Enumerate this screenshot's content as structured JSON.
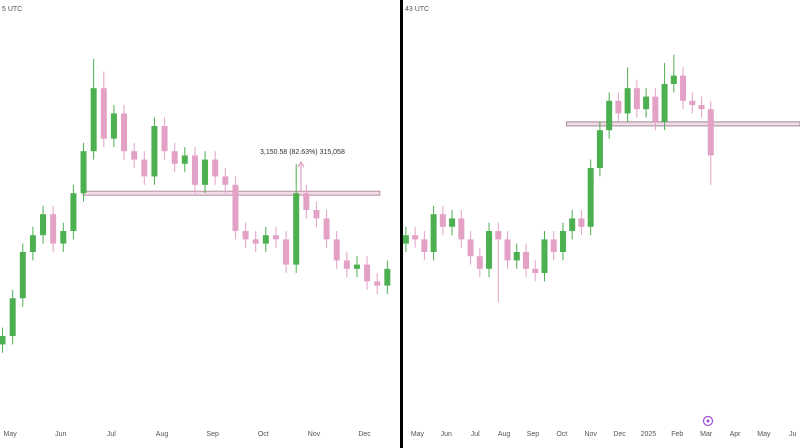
{
  "chart_data": [
    {
      "type": "candlestick",
      "corner_label": "5 UTC",
      "annotation": "3,150.58 (82.63%) 315,058",
      "up_color": "#4caf50",
      "down_color": "#e3a1c6",
      "xlim": [
        4.8,
        12.7
      ],
      "ylim": [
        0,
        100
      ],
      "xticks": [
        {
          "value": 5,
          "label": "May"
        },
        {
          "value": 6,
          "label": "Jun"
        },
        {
          "value": 7,
          "label": "Jul"
        },
        {
          "value": 8,
          "label": "Aug"
        },
        {
          "value": 9,
          "label": "Sep"
        },
        {
          "value": 10,
          "label": "Oct"
        },
        {
          "value": 11,
          "label": "Nov"
        },
        {
          "value": 12,
          "label": "Dec"
        }
      ],
      "x": [
        4.85,
        5.05,
        5.25,
        5.45,
        5.65,
        5.85,
        6.05,
        6.25,
        6.45,
        6.65,
        6.85,
        7.05,
        7.25,
        7.45,
        7.65,
        7.85,
        8.05,
        8.25,
        8.45,
        8.65,
        8.85,
        9.05,
        9.25,
        9.45,
        9.65,
        9.85,
        10.05,
        10.25,
        10.45,
        10.65,
        10.85,
        11.05,
        11.25,
        11.45,
        11.65,
        11.85,
        12.05,
        12.25,
        12.45
      ],
      "open": [
        18,
        20,
        29,
        40,
        44,
        49,
        42,
        45,
        54,
        64,
        79,
        67,
        73,
        64,
        62,
        58,
        70,
        64,
        61,
        63,
        56,
        62,
        58,
        56,
        45,
        43,
        42,
        44,
        43,
        37,
        54,
        50,
        48,
        43,
        38,
        36,
        37,
        33,
        32
      ],
      "high": [
        22,
        31,
        42,
        46,
        51,
        51,
        47,
        56,
        66,
        86,
        83,
        75,
        75,
        66,
        64,
        72,
        72,
        66,
        65,
        65,
        64,
        64,
        60,
        58,
        47,
        45,
        46,
        46,
        45,
        61,
        56,
        52,
        50,
        45,
        40,
        39,
        39,
        35,
        38
      ],
      "low": [
        16,
        18,
        27,
        38,
        42,
        40,
        40,
        43,
        52,
        62,
        65,
        65,
        62,
        60,
        56,
        56,
        62,
        59,
        59,
        54,
        54,
        56,
        54,
        43,
        41,
        40,
        40,
        41,
        35,
        35,
        48,
        46,
        41,
        36,
        34,
        34,
        31,
        30,
        30
      ],
      "close": [
        20,
        29,
        40,
        44,
        49,
        42,
        45,
        54,
        64,
        79,
        67,
        73,
        64,
        62,
        58,
        70,
        64,
        61,
        63,
        56,
        62,
        58,
        56,
        45,
        43,
        42,
        44,
        43,
        37,
        54,
        50,
        48,
        43,
        38,
        36,
        37,
        33,
        32,
        36
      ],
      "level": {
        "value": 54,
        "from": 6.44,
        "to": 12.3,
        "color": "#b48fa3"
      }
    },
    {
      "type": "candlestick",
      "corner_label": "43 UTC",
      "up_color": "#4caf50",
      "down_color": "#e3a1c6",
      "xlim": [
        4.5,
        18.25
      ],
      "ylim": [
        0,
        100
      ],
      "xticks": [
        {
          "value": 5,
          "label": "May"
        },
        {
          "value": 6,
          "label": "Jun"
        },
        {
          "value": 7,
          "label": "Jul"
        },
        {
          "value": 8,
          "label": "Aug"
        },
        {
          "value": 9,
          "label": "Sep"
        },
        {
          "value": 10,
          "label": "Oct"
        },
        {
          "value": 11,
          "label": "Nov"
        },
        {
          "value": 12,
          "label": "Dec"
        },
        {
          "value": 13,
          "label": "2025"
        },
        {
          "value": 14,
          "label": "Feb"
        },
        {
          "value": 15,
          "label": "Mar"
        },
        {
          "value": 16,
          "label": "Apr"
        },
        {
          "value": 17,
          "label": "May"
        },
        {
          "value": 18,
          "label": "Ju"
        }
      ],
      "x": [
        4.6,
        4.92,
        5.24,
        5.56,
        5.88,
        6.2,
        6.52,
        6.84,
        7.16,
        7.48,
        7.8,
        8.12,
        8.44,
        8.76,
        9.08,
        9.4,
        9.72,
        10.04,
        10.36,
        10.68,
        11,
        11.32,
        11.64,
        11.96,
        12.28,
        12.6,
        12.92,
        13.24,
        13.56,
        13.88,
        14.2,
        14.52,
        14.84,
        15.16
      ],
      "open": [
        42,
        44,
        43,
        40,
        49,
        46,
        48,
        43,
        39,
        36,
        45,
        43,
        38,
        40,
        36,
        35,
        43,
        40,
        45,
        48,
        46,
        60,
        69,
        76,
        73,
        79,
        74,
        77,
        71,
        80,
        82,
        76,
        75,
        74
      ],
      "high": [
        46,
        46,
        45,
        51,
        51,
        50,
        50,
        45,
        41,
        47,
        47,
        45,
        42,
        42,
        38,
        45,
        45,
        47,
        50,
        50,
        62,
        71,
        78,
        78,
        84,
        81,
        79,
        79,
        85,
        87,
        84,
        78,
        77,
        76
      ],
      "low": [
        40,
        41,
        38,
        38,
        44,
        44,
        41,
        37,
        34,
        34,
        28,
        36,
        36,
        34,
        33,
        33,
        38,
        38,
        43,
        44,
        44,
        58,
        67,
        71,
        71,
        72,
        72,
        69,
        69,
        78,
        74,
        73,
        72,
        56
      ],
      "close": [
        44,
        43,
        40,
        49,
        46,
        48,
        43,
        39,
        36,
        45,
        43,
        38,
        40,
        36,
        35,
        43,
        40,
        45,
        48,
        46,
        60,
        69,
        76,
        73,
        79,
        74,
        77,
        71,
        80,
        82,
        76,
        75,
        74,
        63
      ],
      "level": {
        "value": 70.5,
        "from": 10.16,
        "to": 18.25,
        "color": "#9c8a93"
      }
    }
  ]
}
